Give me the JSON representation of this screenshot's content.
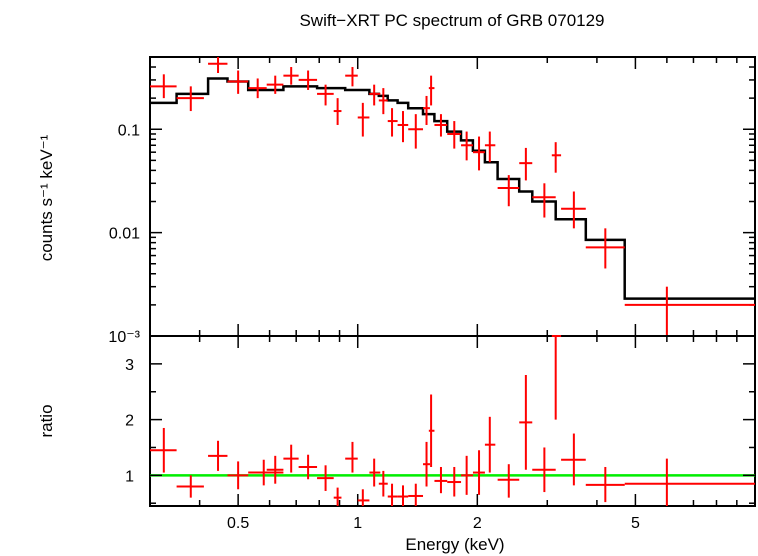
{
  "chart_data": [
    {
      "type": "scatter",
      "title": "Swift−XRT PC spectrum of GRB 070129",
      "ylabel": "counts s⁻¹ keV⁻¹",
      "xlabel": "",
      "xscale": "log",
      "yscale": "log",
      "xlim": [
        0.3,
        10
      ],
      "ylim": [
        0.001,
        0.5
      ],
      "ytick_labels": [
        "10⁻³",
        "0.01",
        "0.1"
      ],
      "ytick_values": [
        0.001,
        0.01,
        0.1
      ],
      "colors": {
        "data": "#ff0000",
        "model": "#000000"
      },
      "series": [
        {
          "role": "data",
          "points": [
            {
              "x": 0.325,
              "xlo": 0.3,
              "xhi": 0.35,
              "y": 0.26,
              "ylo": 0.2,
              "yhi": 0.34
            },
            {
              "x": 0.38,
              "xlo": 0.35,
              "xhi": 0.41,
              "y": 0.2,
              "ylo": 0.15,
              "yhi": 0.26
            },
            {
              "x": 0.445,
              "xlo": 0.42,
              "xhi": 0.47,
              "y": 0.43,
              "ylo": 0.35,
              "yhi": 0.52
            },
            {
              "x": 0.5,
              "xlo": 0.47,
              "xhi": 0.53,
              "y": 0.29,
              "ylo": 0.22,
              "yhi": 0.37
            },
            {
              "x": 0.56,
              "xlo": 0.53,
              "xhi": 0.59,
              "y": 0.25,
              "ylo": 0.2,
              "yhi": 0.31
            },
            {
              "x": 0.62,
              "xlo": 0.59,
              "xhi": 0.65,
              "y": 0.27,
              "ylo": 0.22,
              "yhi": 0.33
            },
            {
              "x": 0.68,
              "xlo": 0.65,
              "xhi": 0.71,
              "y": 0.33,
              "ylo": 0.27,
              "yhi": 0.4
            },
            {
              "x": 0.75,
              "xlo": 0.71,
              "xhi": 0.79,
              "y": 0.3,
              "ylo": 0.24,
              "yhi": 0.37
            },
            {
              "x": 0.83,
              "xlo": 0.79,
              "xhi": 0.87,
              "y": 0.22,
              "ylo": 0.17,
              "yhi": 0.27
            },
            {
              "x": 0.89,
              "xlo": 0.87,
              "xhi": 0.91,
              "y": 0.15,
              "ylo": 0.11,
              "yhi": 0.2
            },
            {
              "x": 0.97,
              "xlo": 0.93,
              "xhi": 1.0,
              "y": 0.33,
              "ylo": 0.26,
              "yhi": 0.4
            },
            {
              "x": 1.03,
              "xlo": 1.0,
              "xhi": 1.07,
              "y": 0.13,
              "ylo": 0.085,
              "yhi": 0.18
            },
            {
              "x": 1.1,
              "xlo": 1.07,
              "xhi": 1.14,
              "y": 0.22,
              "ylo": 0.17,
              "yhi": 0.27
            },
            {
              "x": 1.16,
              "xlo": 1.13,
              "xhi": 1.19,
              "y": 0.19,
              "ylo": 0.14,
              "yhi": 0.25
            },
            {
              "x": 1.22,
              "xlo": 1.19,
              "xhi": 1.26,
              "y": 0.12,
              "ylo": 0.085,
              "yhi": 0.16
            },
            {
              "x": 1.3,
              "xlo": 1.26,
              "xhi": 1.34,
              "y": 0.11,
              "ylo": 0.075,
              "yhi": 0.15
            },
            {
              "x": 1.4,
              "xlo": 1.34,
              "xhi": 1.46,
              "y": 0.1,
              "ylo": 0.065,
              "yhi": 0.14
            },
            {
              "x": 1.49,
              "xlo": 1.46,
              "xhi": 1.52,
              "y": 0.16,
              "ylo": 0.11,
              "yhi": 0.21
            },
            {
              "x": 1.53,
              "xlo": 1.51,
              "xhi": 1.56,
              "y": 0.25,
              "ylo": 0.17,
              "yhi": 0.33
            },
            {
              "x": 1.62,
              "xlo": 1.56,
              "xhi": 1.68,
              "y": 0.11,
              "ylo": 0.085,
              "yhi": 0.14
            },
            {
              "x": 1.75,
              "xlo": 1.68,
              "xhi": 1.82,
              "y": 0.09,
              "ylo": 0.065,
              "yhi": 0.12
            },
            {
              "x": 1.88,
              "xlo": 1.82,
              "xhi": 1.95,
              "y": 0.07,
              "ylo": 0.05,
              "yhi": 0.095
            },
            {
              "x": 2.02,
              "xlo": 1.95,
              "xhi": 2.09,
              "y": 0.06,
              "ylo": 0.04,
              "yhi": 0.085
            },
            {
              "x": 2.15,
              "xlo": 2.09,
              "xhi": 2.22,
              "y": 0.07,
              "ylo": 0.048,
              "yhi": 0.095
            },
            {
              "x": 2.4,
              "xlo": 2.25,
              "xhi": 2.55,
              "y": 0.027,
              "ylo": 0.018,
              "yhi": 0.036
            },
            {
              "x": 2.65,
              "xlo": 2.55,
              "xhi": 2.75,
              "y": 0.047,
              "ylo": 0.032,
              "yhi": 0.066
            },
            {
              "x": 2.95,
              "xlo": 2.75,
              "xhi": 3.15,
              "y": 0.022,
              "ylo": 0.014,
              "yhi": 0.03
            },
            {
              "x": 3.15,
              "xlo": 3.08,
              "xhi": 3.25,
              "y": 0.056,
              "ylo": 0.038,
              "yhi": 0.075
            },
            {
              "x": 3.5,
              "xlo": 3.25,
              "xhi": 3.75,
              "y": 0.017,
              "ylo": 0.011,
              "yhi": 0.025
            },
            {
              "x": 4.2,
              "xlo": 3.75,
              "xhi": 4.7,
              "y": 0.0072,
              "ylo": 0.0045,
              "yhi": 0.011
            },
            {
              "x": 6.0,
              "xlo": 4.7,
              "xhi": 10.0,
              "y": 0.002,
              "ylo": 0.00095,
              "yhi": 0.003
            }
          ]
        },
        {
          "role": "model",
          "steps": [
            {
              "x0": 0.3,
              "x1": 0.35,
              "y": 0.18
            },
            {
              "x0": 0.35,
              "x1": 0.42,
              "y": 0.22
            },
            {
              "x0": 0.42,
              "x1": 0.47,
              "y": 0.31
            },
            {
              "x0": 0.47,
              "x1": 0.53,
              "y": 0.29
            },
            {
              "x0": 0.53,
              "x1": 0.65,
              "y": 0.24
            },
            {
              "x0": 0.65,
              "x1": 0.79,
              "y": 0.26
            },
            {
              "x0": 0.79,
              "x1": 0.93,
              "y": 0.25
            },
            {
              "x0": 0.93,
              "x1": 1.07,
              "y": 0.24
            },
            {
              "x0": 1.07,
              "x1": 1.13,
              "y": 0.22
            },
            {
              "x0": 1.13,
              "x1": 1.19,
              "y": 0.21
            },
            {
              "x0": 1.19,
              "x1": 1.26,
              "y": 0.19
            },
            {
              "x0": 1.26,
              "x1": 1.34,
              "y": 0.18
            },
            {
              "x0": 1.34,
              "x1": 1.46,
              "y": 0.16
            },
            {
              "x0": 1.46,
              "x1": 1.56,
              "y": 0.14
            },
            {
              "x0": 1.56,
              "x1": 1.68,
              "y": 0.12
            },
            {
              "x0": 1.68,
              "x1": 1.82,
              "y": 0.095
            },
            {
              "x0": 1.82,
              "x1": 1.95,
              "y": 0.078
            },
            {
              "x0": 1.95,
              "x1": 2.09,
              "y": 0.062
            },
            {
              "x0": 2.09,
              "x1": 2.25,
              "y": 0.048
            },
            {
              "x0": 2.25,
              "x1": 2.55,
              "y": 0.033
            },
            {
              "x0": 2.55,
              "x1": 2.75,
              "y": 0.025
            },
            {
              "x0": 2.75,
              "x1": 3.15,
              "y": 0.02
            },
            {
              "x0": 3.15,
              "x1": 3.75,
              "y": 0.0135
            },
            {
              "x0": 3.75,
              "x1": 4.7,
              "y": 0.0085
            },
            {
              "x0": 4.7,
              "x1": 10.0,
              "y": 0.0023
            }
          ]
        }
      ]
    },
    {
      "type": "scatter",
      "title": "",
      "ylabel": "ratio",
      "xlabel": "Energy (keV)",
      "xscale": "log",
      "yscale": "linear",
      "xlim": [
        0.3,
        10
      ],
      "ylim": [
        0.45,
        3.5
      ],
      "xtick_labels": [
        "0.5",
        "1",
        "2",
        "5"
      ],
      "xtick_values": [
        0.5,
        1,
        2,
        5
      ],
      "ytick_labels": [
        "1",
        "2",
        "3"
      ],
      "ytick_values": [
        1,
        2,
        3
      ],
      "reference_line": 1,
      "colors": {
        "data": "#ff0000",
        "reference": "#00ee00"
      },
      "series": [
        {
          "role": "ratio",
          "points": [
            {
              "x": 0.325,
              "xlo": 0.3,
              "xhi": 0.35,
              "y": 1.45,
              "ylo": 1.05,
              "yhi": 1.85
            },
            {
              "x": 0.38,
              "xlo": 0.35,
              "xhi": 0.41,
              "y": 0.8,
              "ylo": 0.6,
              "yhi": 1.0
            },
            {
              "x": 0.445,
              "xlo": 0.42,
              "xhi": 0.47,
              "y": 1.35,
              "ylo": 1.08,
              "yhi": 1.62
            },
            {
              "x": 0.5,
              "xlo": 0.47,
              "xhi": 0.53,
              "y": 1.0,
              "ylo": 0.75,
              "yhi": 1.25
            },
            {
              "x": 0.58,
              "xlo": 0.53,
              "xhi": 0.65,
              "y": 1.05,
              "ylo": 0.82,
              "yhi": 1.28
            },
            {
              "x": 0.62,
              "xlo": 0.59,
              "xhi": 0.65,
              "y": 1.1,
              "ylo": 0.85,
              "yhi": 1.35
            },
            {
              "x": 0.68,
              "xlo": 0.65,
              "xhi": 0.71,
              "y": 1.3,
              "ylo": 1.05,
              "yhi": 1.55
            },
            {
              "x": 0.75,
              "xlo": 0.71,
              "xhi": 0.79,
              "y": 1.15,
              "ylo": 0.93,
              "yhi": 1.37
            },
            {
              "x": 0.83,
              "xlo": 0.79,
              "xhi": 0.87,
              "y": 0.95,
              "ylo": 0.72,
              "yhi": 1.18
            },
            {
              "x": 0.89,
              "xlo": 0.87,
              "xhi": 0.91,
              "y": 0.6,
              "ylo": 0.45,
              "yhi": 0.78
            },
            {
              "x": 0.97,
              "xlo": 0.93,
              "xhi": 1.0,
              "y": 1.3,
              "ylo": 1.05,
              "yhi": 1.6
            },
            {
              "x": 1.03,
              "xlo": 1.0,
              "xhi": 1.07,
              "y": 0.55,
              "ylo": 0.45,
              "yhi": 0.75
            },
            {
              "x": 1.1,
              "xlo": 1.07,
              "xhi": 1.14,
              "y": 1.05,
              "ylo": 0.8,
              "yhi": 1.3
            },
            {
              "x": 1.16,
              "xlo": 1.13,
              "xhi": 1.19,
              "y": 0.85,
              "ylo": 0.62,
              "yhi": 1.08
            },
            {
              "x": 1.22,
              "xlo": 1.19,
              "xhi": 1.26,
              "y": 0.62,
              "ylo": 0.45,
              "yhi": 0.85
            },
            {
              "x": 1.3,
              "xlo": 1.26,
              "xhi": 1.34,
              "y": 0.62,
              "ylo": 0.45,
              "yhi": 0.82
            },
            {
              "x": 1.4,
              "xlo": 1.34,
              "xhi": 1.46,
              "y": 0.63,
              "ylo": 0.45,
              "yhi": 0.85
            },
            {
              "x": 1.49,
              "xlo": 1.46,
              "xhi": 1.52,
              "y": 1.2,
              "ylo": 0.8,
              "yhi": 1.6
            },
            {
              "x": 1.53,
              "xlo": 1.51,
              "xhi": 1.56,
              "y": 1.8,
              "ylo": 1.15,
              "yhi": 2.45
            },
            {
              "x": 1.62,
              "xlo": 1.56,
              "xhi": 1.68,
              "y": 0.9,
              "ylo": 0.68,
              "yhi": 1.15
            },
            {
              "x": 1.75,
              "xlo": 1.68,
              "xhi": 1.82,
              "y": 0.88,
              "ylo": 0.62,
              "yhi": 1.15
            },
            {
              "x": 1.88,
              "xlo": 1.82,
              "xhi": 1.95,
              "y": 1.0,
              "ylo": 0.65,
              "yhi": 1.35
            },
            {
              "x": 2.02,
              "xlo": 1.95,
              "xhi": 2.09,
              "y": 1.05,
              "ylo": 0.65,
              "yhi": 1.45
            },
            {
              "x": 2.15,
              "xlo": 2.09,
              "xhi": 2.22,
              "y": 1.55,
              "ylo": 1.05,
              "yhi": 2.05
            },
            {
              "x": 2.4,
              "xlo": 2.25,
              "xhi": 2.55,
              "y": 0.92,
              "ylo": 0.6,
              "yhi": 1.2
            },
            {
              "x": 2.65,
              "xlo": 2.55,
              "xhi": 2.75,
              "y": 1.95,
              "ylo": 1.1,
              "yhi": 2.8
            },
            {
              "x": 2.95,
              "xlo": 2.75,
              "xhi": 3.15,
              "y": 1.1,
              "ylo": 0.7,
              "yhi": 1.5
            },
            {
              "x": 3.15,
              "xlo": 3.08,
              "xhi": 3.25,
              "y": 3.5,
              "ylo": 2.0,
              "yhi": 3.5
            },
            {
              "x": 3.5,
              "xlo": 3.25,
              "xhi": 3.75,
              "y": 1.28,
              "ylo": 0.82,
              "yhi": 1.75
            },
            {
              "x": 4.2,
              "xlo": 3.75,
              "xhi": 4.7,
              "y": 0.83,
              "ylo": 0.52,
              "yhi": 1.15
            },
            {
              "x": 6.0,
              "xlo": 4.7,
              "xhi": 10.0,
              "y": 0.85,
              "ylo": 0.4,
              "yhi": 1.3
            }
          ]
        }
      ]
    }
  ]
}
